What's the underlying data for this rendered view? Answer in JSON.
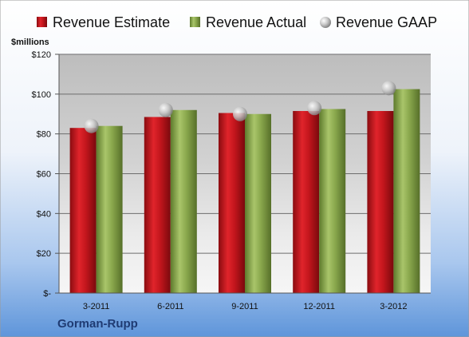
{
  "company": "Gorman-Rupp",
  "chart_data": {
    "type": "bar",
    "ylabel": "$millions",
    "categories": [
      "3-2011",
      "6-2011",
      "9-2011",
      "12-2011",
      "3-2012"
    ],
    "series": [
      {
        "name": "Revenue Estimate",
        "kind": "bar",
        "color": "#c0161c",
        "values": [
          83,
          88.5,
          90.5,
          91.5,
          91.5
        ]
      },
      {
        "name": "Revenue Actual",
        "kind": "bar",
        "color": "#8fae52",
        "values": [
          84,
          92,
          90,
          92.5,
          102.5
        ]
      },
      {
        "name": "Revenue GAAP",
        "kind": "marker",
        "color": "#bfbfbf",
        "values": [
          84,
          92,
          90,
          93,
          103
        ]
      }
    ],
    "ylim": [
      0,
      120
    ],
    "yticks": [
      0,
      20,
      40,
      60,
      80,
      100,
      120
    ],
    "ytick_labels": [
      "$-",
      "$20",
      "$40",
      "$60",
      "$80",
      "$100",
      "$120"
    ],
    "grid": true,
    "legend": "top"
  }
}
